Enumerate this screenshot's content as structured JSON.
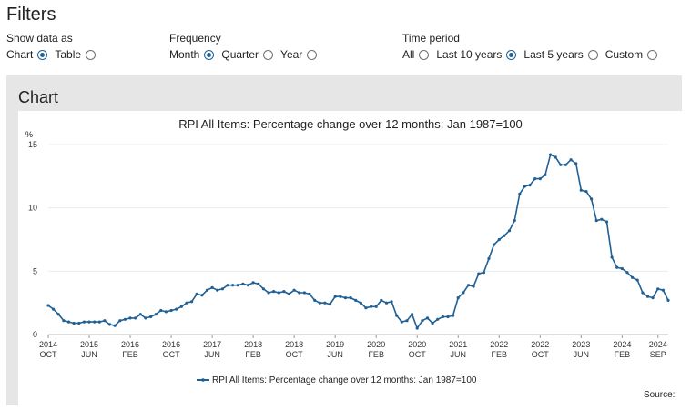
{
  "filters": {
    "title": "Filters",
    "show_data_as": {
      "label": "Show data as",
      "options": [
        {
          "label": "Chart",
          "checked": true
        },
        {
          "label": "Table",
          "checked": false
        }
      ]
    },
    "frequency": {
      "label": "Frequency",
      "options": [
        {
          "label": "Month",
          "checked": true
        },
        {
          "label": "Quarter",
          "checked": false
        },
        {
          "label": "Year",
          "checked": false
        }
      ]
    },
    "time_period": {
      "label": "Time period",
      "options": [
        {
          "label": "All",
          "checked": false
        },
        {
          "label": "Last 10 years",
          "checked": true
        },
        {
          "label": "Last 5 years",
          "checked": false
        },
        {
          "label": "Custom",
          "checked": false
        }
      ]
    }
  },
  "chart_section": {
    "heading": "Chart",
    "source_label": "Source:"
  },
  "chart_data": {
    "type": "line",
    "title": "RPI All Items: Percentage change over 12 months: Jan 1987=100",
    "ylabel": "%",
    "xlabel": "",
    "ylim": [
      0,
      15
    ],
    "yticks": [
      0,
      5,
      10,
      15
    ],
    "xticks": [
      {
        "date": "2014-10",
        "year": "2014",
        "month": "OCT"
      },
      {
        "date": "2015-06",
        "year": "2015",
        "month": "JUN"
      },
      {
        "date": "2016-02",
        "year": "2016",
        "month": "FEB"
      },
      {
        "date": "2016-10",
        "year": "2016",
        "month": "OCT"
      },
      {
        "date": "2017-06",
        "year": "2017",
        "month": "JUN"
      },
      {
        "date": "2018-02",
        "year": "2018",
        "month": "FEB"
      },
      {
        "date": "2018-10",
        "year": "2018",
        "month": "OCT"
      },
      {
        "date": "2019-06",
        "year": "2019",
        "month": "JUN"
      },
      {
        "date": "2020-02",
        "year": "2020",
        "month": "FEB"
      },
      {
        "date": "2020-10",
        "year": "2020",
        "month": "OCT"
      },
      {
        "date": "2021-06",
        "year": "2021",
        "month": "JUN"
      },
      {
        "date": "2022-02",
        "year": "2022",
        "month": "FEB"
      },
      {
        "date": "2022-10",
        "year": "2022",
        "month": "OCT"
      },
      {
        "date": "2023-06",
        "year": "2023",
        "month": "JUN"
      },
      {
        "date": "2024-02",
        "year": "2024",
        "month": "FEB"
      },
      {
        "date": "2024-09",
        "year": "2024",
        "month": "SEP"
      }
    ],
    "grid": true,
    "legend": "bottom-center",
    "series": [
      {
        "name": "RPI All Items: Percentage change over 12 months: Jan 1987=100",
        "color": "#206095",
        "start": "2014-10",
        "values": [
          2.3,
          2.0,
          1.6,
          1.1,
          1.0,
          0.9,
          0.9,
          1.0,
          1.0,
          1.0,
          1.0,
          1.1,
          0.8,
          0.7,
          1.1,
          1.2,
          1.3,
          1.3,
          1.6,
          1.3,
          1.4,
          1.6,
          1.9,
          1.8,
          1.9,
          2.0,
          2.2,
          2.5,
          2.6,
          3.2,
          3.1,
          3.5,
          3.7,
          3.5,
          3.6,
          3.9,
          3.9,
          3.9,
          4.0,
          3.9,
          4.1,
          4.0,
          3.6,
          3.3,
          3.4,
          3.3,
          3.4,
          3.2,
          3.5,
          3.3,
          3.3,
          3.2,
          2.7,
          2.5,
          2.5,
          2.4,
          3.0,
          3.0,
          2.9,
          2.9,
          2.7,
          2.5,
          2.1,
          2.2,
          2.2,
          2.7,
          2.5,
          2.6,
          1.5,
          1.0,
          1.1,
          1.6,
          0.5,
          1.1,
          1.3,
          0.9,
          1.2,
          1.4,
          1.4,
          1.5,
          2.9,
          3.3,
          3.9,
          3.8,
          4.8,
          4.9,
          6.0,
          7.1,
          7.5,
          7.8,
          8.2,
          9.0,
          11.1,
          11.7,
          11.8,
          12.3,
          12.3,
          12.6,
          14.2,
          14.0,
          13.4,
          13.4,
          13.8,
          13.5,
          11.4,
          11.3,
          10.7,
          9.0,
          9.1,
          8.9,
          6.1,
          5.3,
          5.2,
          4.9,
          4.5,
          4.3,
          3.3,
          3.0,
          2.9,
          3.6,
          3.5,
          2.7
        ]
      }
    ]
  }
}
